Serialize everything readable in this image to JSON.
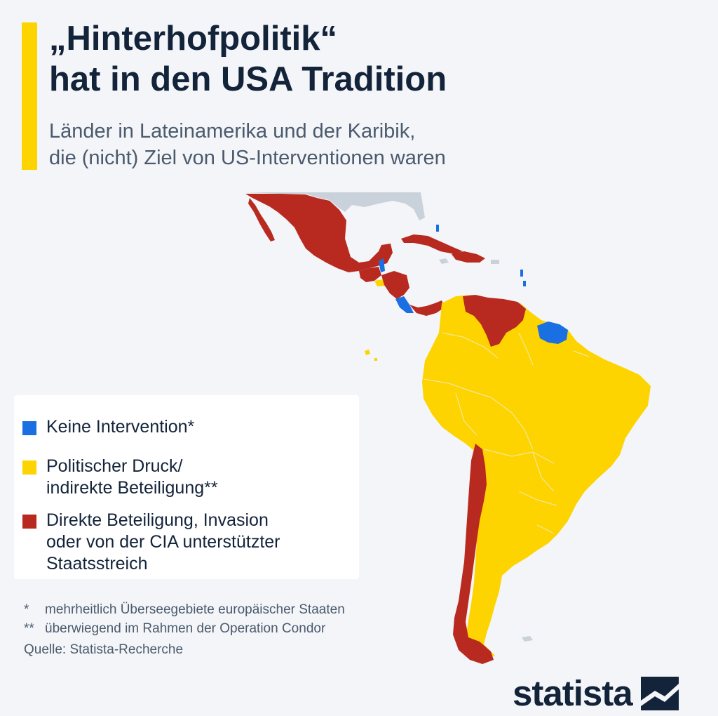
{
  "title_lines": [
    "„Hinterhofpolitik“",
    "hat in den USA Tradition"
  ],
  "subtitle_lines": [
    "Länder in Lateinamerika und der Karibik,",
    "die (nicht) Ziel von US-Interventionen waren"
  ],
  "colors": {
    "accent": "#fdd300",
    "blue": "#1a6fe3",
    "yellow": "#fdd300",
    "red": "#b82a20",
    "neighbor": "#c9d2da",
    "text_dark": "#13233a",
    "text_muted": "#4b5a6d"
  },
  "legend": [
    {
      "label": "Keine Intervention*",
      "color": "#1a6fe3"
    },
    {
      "label": "Politischer Druck/\nindirekte Beteiligung**",
      "color": "#fdd300"
    },
    {
      "label": "Direkte Beteiligung, Invasion\noder von der CIA unterstützter\nStaatsstreich",
      "color": "#b82a20"
    }
  ],
  "notes": [
    {
      "mark": "*",
      "text": "mehrheitlich Überseegebiete europäischer Staaten"
    },
    {
      "mark": "**",
      "text": "überwiegend im Rahmen der Operation Condor"
    }
  ],
  "source": "Quelle: Statista-Recherche",
  "brand": {
    "name": "statista",
    "icon": "statista-logo-icon"
  }
}
